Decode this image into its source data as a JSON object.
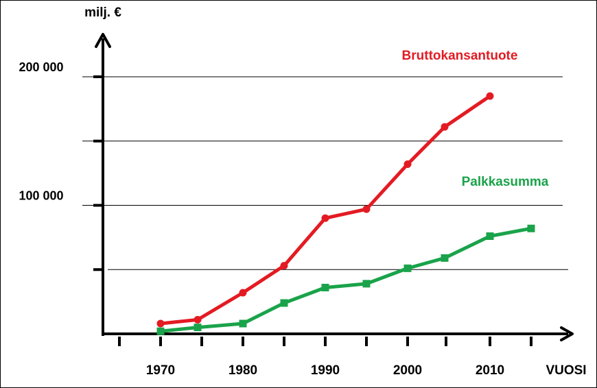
{
  "chart_data": {
    "type": "line",
    "ylabel": "milj. €",
    "xlabel": "VUOSI",
    "xlim": [
      1962,
      2021
    ],
    "ylim": [
      0,
      210000
    ],
    "x_ticks": [
      1965,
      1970,
      1975,
      1980,
      1985,
      1990,
      1995,
      2000,
      2005,
      2010,
      2015
    ],
    "x_tick_labels": [
      {
        "x": 1970,
        "label": "1970"
      },
      {
        "x": 1980,
        "label": "1980"
      },
      {
        "x": 1990,
        "label": "1990"
      },
      {
        "x": 2000,
        "label": "2000"
      },
      {
        "x": 2010,
        "label": "2010"
      }
    ],
    "y_ticks": [
      50000,
      100000,
      150000,
      200000
    ],
    "y_tick_labels": [
      {
        "y": 100000,
        "label": "100 000"
      },
      {
        "y": 200000,
        "label": "200 000"
      }
    ],
    "gridlines": [
      50000,
      100000,
      150000,
      200000
    ],
    "grid": true,
    "series": [
      {
        "name": "Bruttokansantuote",
        "color": "#e31b23",
        "marker": "circle",
        "x": [
          1970,
          1974.5,
          1980,
          1985,
          1990,
          1995,
          2000,
          2004.5,
          2010
        ],
        "y": [
          8000,
          11000,
          32000,
          53000,
          90000,
          97000,
          132000,
          161000,
          185000
        ]
      },
      {
        "name": "Palkkasumma",
        "color": "#1aa34a",
        "marker": "square",
        "x": [
          1970,
          1974.5,
          1980,
          1985,
          1990,
          1995,
          2000,
          2004.5,
          2010,
          2015
        ],
        "y": [
          2000,
          5000,
          8000,
          24000,
          36000,
          39000,
          51000,
          59000,
          76000,
          82000
        ]
      }
    ]
  }
}
